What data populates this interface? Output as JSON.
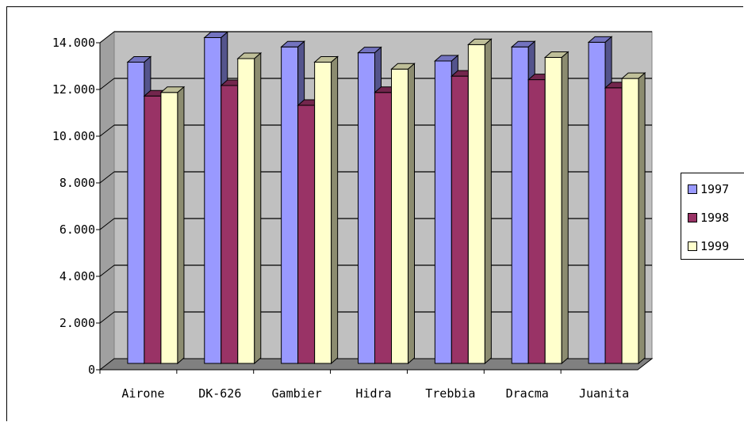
{
  "chart_data": {
    "type": "bar",
    "categories": [
      "Airone",
      "DK-626",
      "Gambier",
      "Hidra",
      "Trebbia",
      "Dracma",
      "Juanita"
    ],
    "series": [
      {
        "name": "1997",
        "color": "#9999FF",
        "values": [
          12900,
          13950,
          13550,
          13300,
          12950,
          13550,
          13750
        ]
      },
      {
        "name": "1998",
        "color": "#993366",
        "values": [
          11450,
          11900,
          11050,
          11600,
          12300,
          12150,
          11800
        ]
      },
      {
        "name": "1999",
        "color": "#FFFFCC",
        "values": [
          11600,
          13050,
          12900,
          12600,
          13650,
          13100,
          12200
        ]
      }
    ],
    "yticks": [
      "0",
      "2.000",
      "4.000",
      "6.000",
      "8.000",
      "10.000",
      "12.000",
      "14.000"
    ],
    "ylim": [
      0,
      14000
    ],
    "grid": true,
    "legend": "right",
    "wall_color": "#C0C0C0",
    "floor_color": "#808080"
  }
}
